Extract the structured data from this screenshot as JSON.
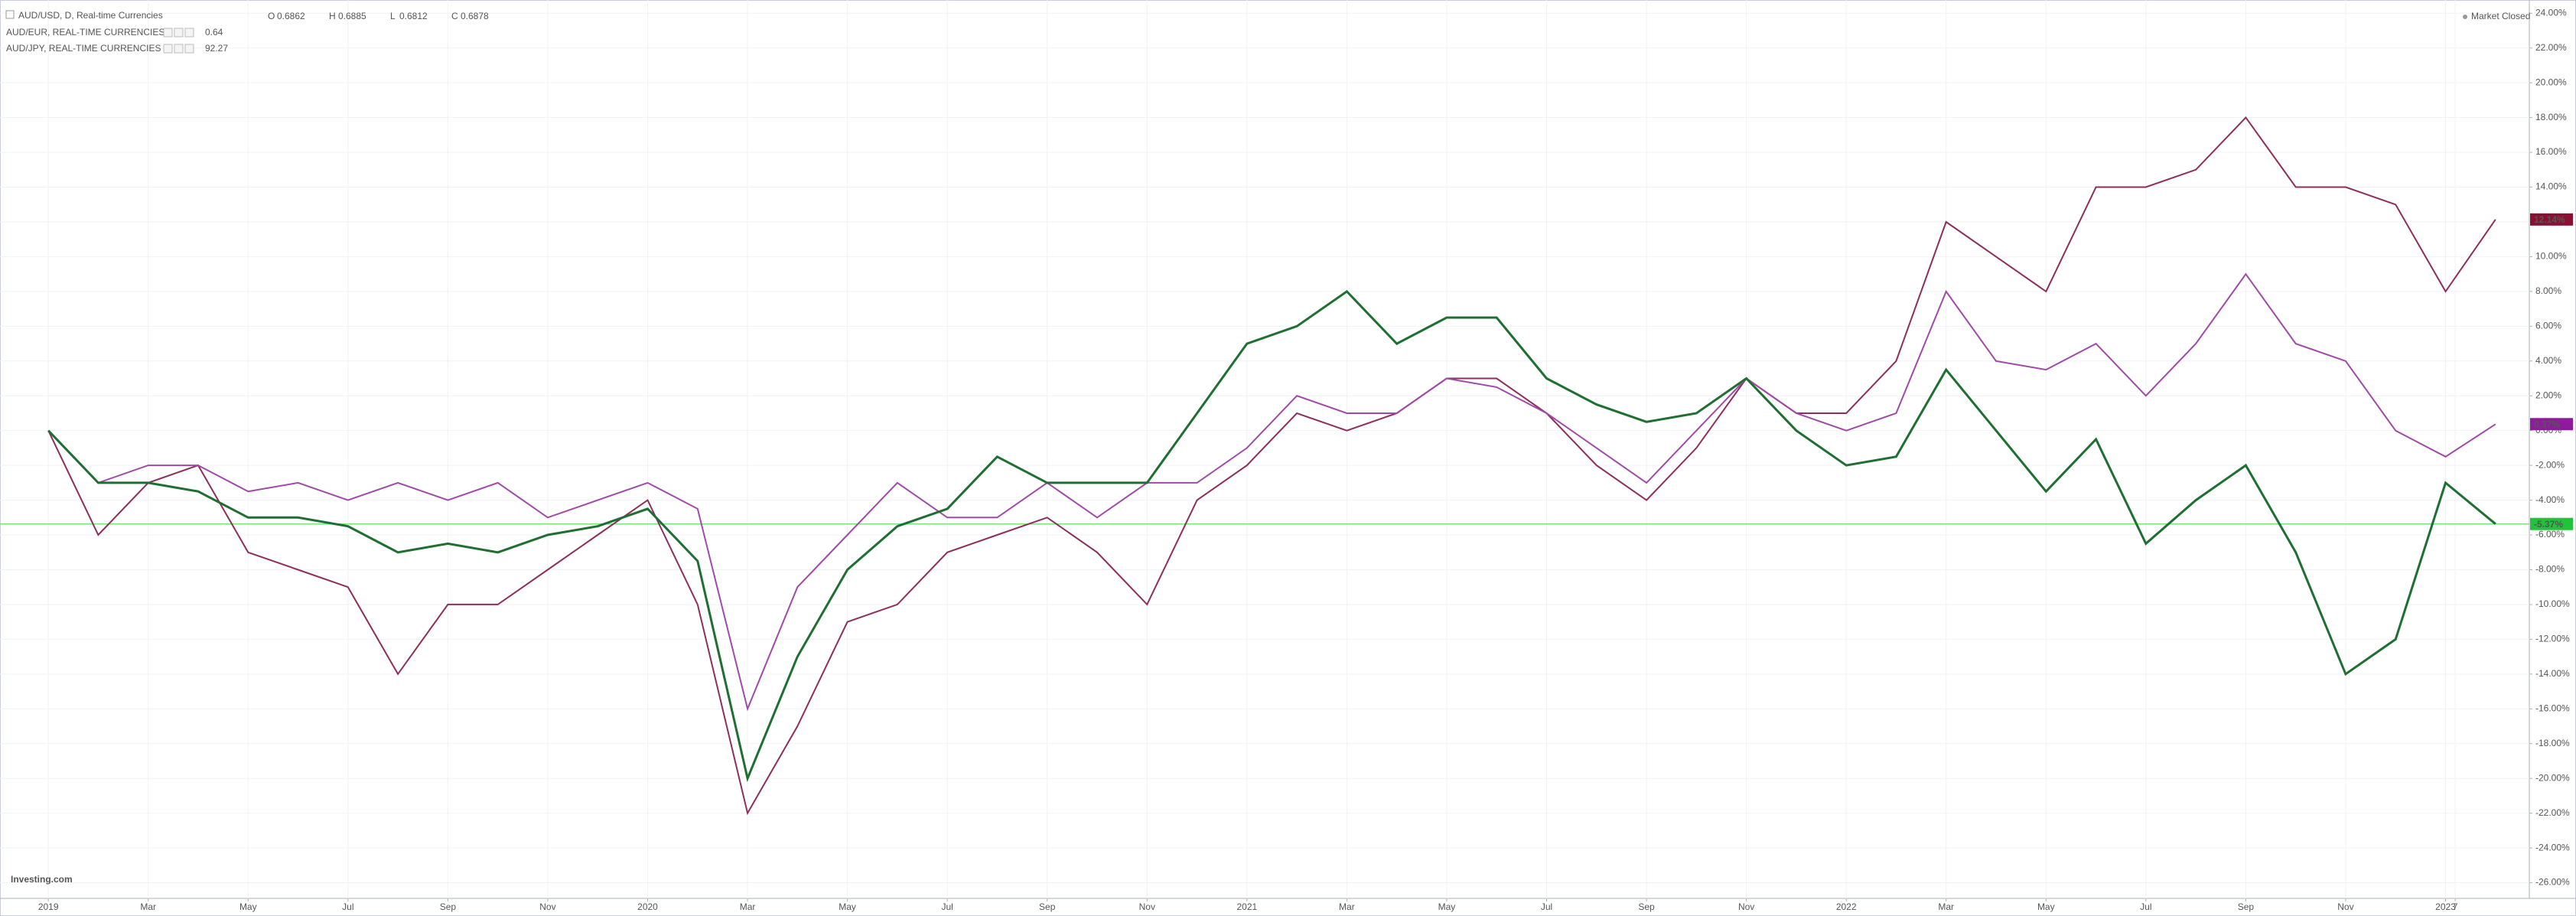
{
  "chart_data": {
    "type": "line",
    "status": "Market Closed",
    "watermark": "Investing.com",
    "ohlc": [
      {
        "label": "O",
        "value": 0.6862
      },
      {
        "label": "H",
        "value": 0.6885
      },
      {
        "label": "L",
        "value": 0.6812
      },
      {
        "label": "C",
        "value": 0.6878
      }
    ],
    "x": [
      "2019-01",
      "2019-02",
      "2019-03",
      "2019-04",
      "2019-05",
      "2019-06",
      "2019-07",
      "2019-08",
      "2019-09",
      "2019-10",
      "2019-11",
      "2019-12",
      "2020-01",
      "2020-02",
      "2020-03",
      "2020-04",
      "2020-05",
      "2020-06",
      "2020-07",
      "2020-08",
      "2020-09",
      "2020-10",
      "2020-11",
      "2020-12",
      "2021-01",
      "2021-02",
      "2021-03",
      "2021-04",
      "2021-05",
      "2021-06",
      "2021-07",
      "2021-08",
      "2021-09",
      "2021-10",
      "2021-11",
      "2021-12",
      "2022-01",
      "2022-02",
      "2022-03",
      "2022-04",
      "2022-05",
      "2022-06",
      "2022-07",
      "2022-08",
      "2022-09",
      "2022-10",
      "2022-11",
      "2022-12",
      "2023-01",
      "2023-02"
    ],
    "series": [
      {
        "name": "AUD/USD, D, Real-time Currencies",
        "color": "#1f6e32",
        "tag_color": "#22c33a",
        "values": [
          0,
          -3,
          -3,
          -3.5,
          -5,
          -5,
          -5.5,
          -7,
          -6.5,
          -7,
          -6,
          -5.5,
          -4.5,
          -7.5,
          -20,
          -13,
          -8,
          -5.5,
          -4.5,
          -1.5,
          -3,
          -3,
          -3,
          1,
          5,
          6,
          8,
          5,
          6.5,
          6.5,
          3,
          1.5,
          0.5,
          1,
          3,
          0,
          -2,
          -1.5,
          3.5,
          0,
          -3.5,
          -0.5,
          -6.5,
          -4,
          -2,
          -7,
          -14,
          -12,
          -3,
          -5.37
        ],
        "value_labels": [
          null,
          null,
          null,
          null,
          null,
          null,
          null,
          null,
          null,
          null,
          null,
          null,
          null,
          null,
          null,
          null,
          null,
          null,
          null,
          null,
          null,
          null,
          null,
          null,
          null,
          null,
          null,
          null,
          null,
          null,
          null,
          null,
          null,
          null,
          null,
          null,
          null,
          null,
          null,
          null,
          null,
          null,
          null,
          null,
          null,
          null,
          null,
          null,
          null,
          "-5.37%"
        ]
      },
      {
        "name": "AUD/EUR, REAL-TIME CURRENCIES",
        "color": "#a04aa8",
        "tag_color": "#8d1b9b",
        "price": 0.64,
        "values": [
          0,
          -3,
          -2,
          -2,
          -3.5,
          -3,
          -4,
          -3,
          -4,
          -3,
          -5,
          -4,
          -3,
          -4.5,
          -16,
          -9,
          -6,
          -3,
          -5,
          -5,
          -3,
          -5,
          -3,
          -3,
          -1,
          2,
          1,
          1,
          3,
          2.5,
          1,
          -1,
          -3,
          0,
          3,
          1,
          0,
          1,
          8,
          4,
          3.5,
          5,
          2,
          5,
          9,
          5,
          4,
          0,
          -1.5,
          0.37
        ],
        "value_labels": [
          null,
          null,
          null,
          null,
          null,
          null,
          null,
          null,
          null,
          null,
          null,
          null,
          null,
          null,
          null,
          null,
          null,
          null,
          null,
          null,
          null,
          null,
          null,
          null,
          null,
          null,
          null,
          null,
          null,
          null,
          null,
          null,
          null,
          null,
          null,
          null,
          null,
          null,
          null,
          null,
          null,
          null,
          null,
          null,
          null,
          null,
          null,
          null,
          null,
          "0.37%"
        ]
      },
      {
        "name": "AUD/JPY, REAL-TIME CURRENCIES",
        "color": "#8e2e5a",
        "tag_color": "#8a0f33",
        "price": 92.27,
        "values": [
          0,
          -6,
          -3,
          -2,
          -7,
          -8,
          -9,
          -14,
          -10,
          -10,
          -8,
          -6,
          -4,
          -10,
          -22,
          -17,
          -11,
          -10,
          -7,
          -6,
          -5,
          -7,
          -10,
          -4,
          -2,
          1,
          0,
          1,
          3,
          3,
          1,
          -2,
          -4,
          -1,
          3,
          1,
          1,
          4,
          12,
          10,
          8,
          14,
          14,
          15,
          18,
          14,
          14,
          13,
          8,
          12.14
        ],
        "value_labels": [
          null,
          null,
          null,
          null,
          null,
          null,
          null,
          null,
          null,
          null,
          null,
          null,
          null,
          null,
          null,
          null,
          null,
          null,
          null,
          null,
          null,
          null,
          null,
          null,
          null,
          null,
          null,
          null,
          null,
          null,
          null,
          null,
          null,
          null,
          null,
          null,
          null,
          null,
          null,
          null,
          null,
          null,
          null,
          null,
          null,
          null,
          null,
          null,
          null,
          "12.14%"
        ]
      }
    ],
    "xlim": [
      "2018-12-02",
      "2023-02-22"
    ],
    "xticks": [
      {
        "value": "2019-01",
        "label": "2019"
      },
      {
        "value": "2019-03",
        "label": "Mar"
      },
      {
        "value": "2019-05",
        "label": "May"
      },
      {
        "value": "2019-07",
        "label": "Jul"
      },
      {
        "value": "2019-09",
        "label": "Sep"
      },
      {
        "value": "2019-11",
        "label": "Nov"
      },
      {
        "value": "2020-01",
        "label": "2020"
      },
      {
        "value": "2020-03",
        "label": "Mar"
      },
      {
        "value": "2020-05",
        "label": "May"
      },
      {
        "value": "2020-07",
        "label": "Jul"
      },
      {
        "value": "2020-09",
        "label": "Sep"
      },
      {
        "value": "2020-11",
        "label": "Nov"
      },
      {
        "value": "2021-01",
        "label": "2021"
      },
      {
        "value": "2021-03",
        "label": "Mar"
      },
      {
        "value": "2021-05",
        "label": "May"
      },
      {
        "value": "2021-07",
        "label": "Jul"
      },
      {
        "value": "2021-09",
        "label": "Sep"
      },
      {
        "value": "2021-11",
        "label": "Nov"
      },
      {
        "value": "2022-01",
        "label": "2022"
      },
      {
        "value": "2022-03",
        "label": "Mar"
      },
      {
        "value": "2022-05",
        "label": "May"
      },
      {
        "value": "2022-07",
        "label": "Jul"
      },
      {
        "value": "2022-09",
        "label": "Sep"
      },
      {
        "value": "2022-11",
        "label": "Nov"
      },
      {
        "value": "2023-01",
        "label": "2023"
      },
      {
        "value": "2023-01-07",
        "label": "7"
      }
    ],
    "ylim": [
      -26.9,
      24.76
    ],
    "yticks": [
      {
        "value": 24,
        "label": "24.00%"
      },
      {
        "value": 22,
        "label": "22.00%"
      },
      {
        "value": 20,
        "label": "20.00%"
      },
      {
        "value": 18,
        "label": "18.00%"
      },
      {
        "value": 16,
        "label": "16.00%"
      },
      {
        "value": 14,
        "label": "14.00%"
      },
      {
        "value": 12,
        "label": "12.00%"
      },
      {
        "value": 10,
        "label": "10.00%"
      },
      {
        "value": 8,
        "label": "8.00%"
      },
      {
        "value": 6,
        "label": "6.00%"
      },
      {
        "value": 4,
        "label": "4.00%"
      },
      {
        "value": 2,
        "label": "2.00%"
      },
      {
        "value": 0,
        "label": "0.00%"
      },
      {
        "value": -2,
        "label": "-2.00%"
      },
      {
        "value": -4,
        "label": "-4.00%"
      },
      {
        "value": -6,
        "label": "-6.00%"
      },
      {
        "value": -8,
        "label": "-8.00%"
      },
      {
        "value": -10,
        "label": "-10.00%"
      },
      {
        "value": -12,
        "label": "-12.00%"
      },
      {
        "value": -14,
        "label": "-14.00%"
      },
      {
        "value": -16,
        "label": "-16.00%"
      },
      {
        "value": -18,
        "label": "-18.00%"
      },
      {
        "value": -20,
        "label": "-20.00%"
      },
      {
        "value": -22,
        "label": "-22.00%"
      },
      {
        "value": -24,
        "label": "-24.00%"
      },
      {
        "value": -26,
        "label": "-26.00%"
      }
    ],
    "grid": true
  }
}
